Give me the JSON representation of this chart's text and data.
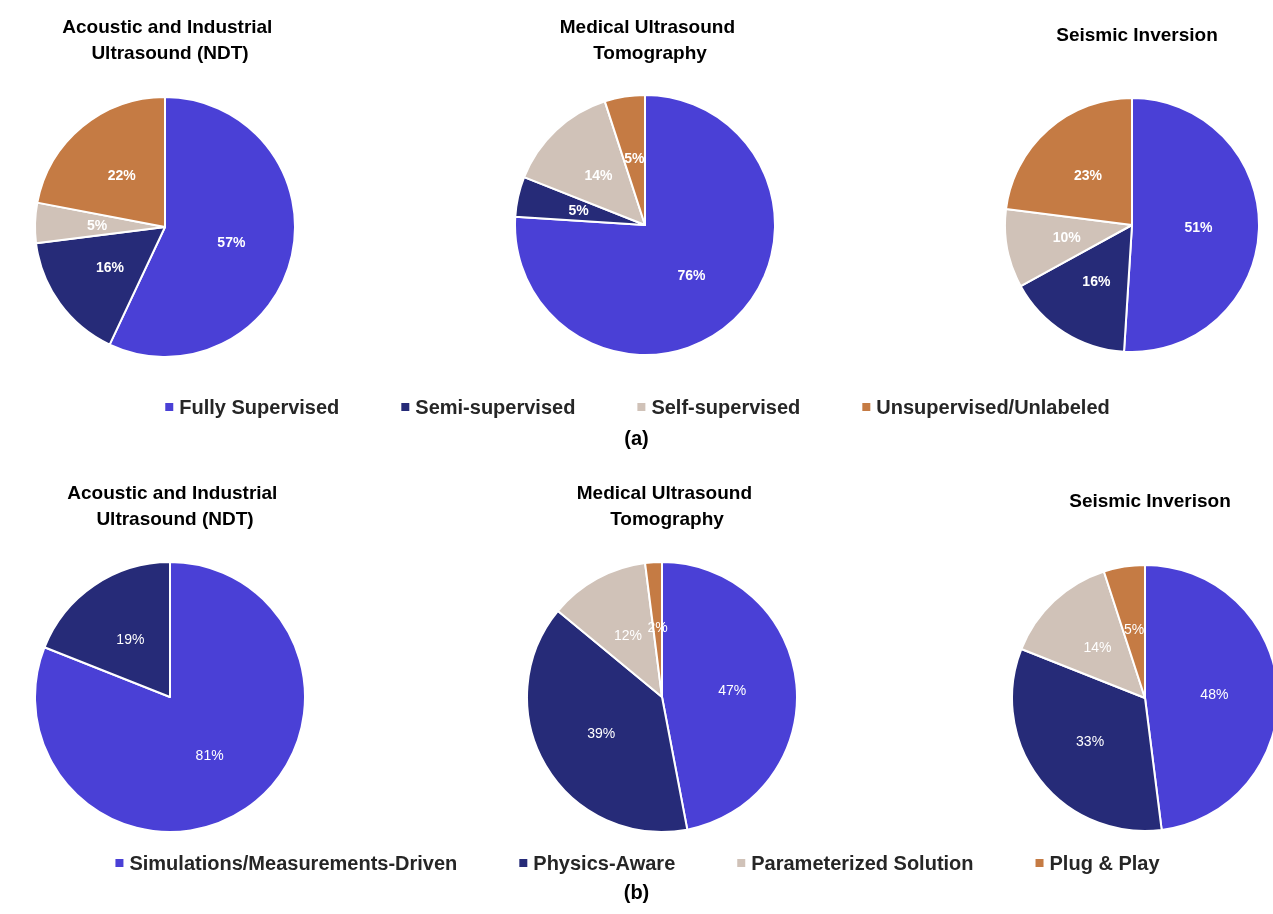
{
  "chart_data": [
    {
      "type": "pie",
      "categories": [
        "Fully Supervised",
        "Semi-supervised",
        "Self-supervised",
        "Unsupervised/Unlabeled"
      ],
      "colors": [
        "#4a40d6",
        "#262b78",
        "#d0c2b8",
        "#c57b44"
      ],
      "legend": "bottom",
      "annotations": [
        "(a)"
      ],
      "series": [
        {
          "name": "Acoustic and Industrial Ultrasound (NDT)",
          "values": [
            57,
            16,
            5,
            22
          ],
          "value_labels": [
            "57%",
            "16%",
            "5%",
            "22%"
          ]
        },
        {
          "name": "Medical Ultrasound Tomography",
          "values": [
            76,
            5,
            14,
            5
          ],
          "value_labels": [
            "76%",
            "5%",
            "14%",
            "5%"
          ]
        },
        {
          "name": "Seismic Inversion",
          "values": [
            51,
            16,
            10,
            23
          ],
          "value_labels": [
            "51%",
            "16%",
            "10%",
            "23%"
          ]
        }
      ]
    },
    {
      "type": "pie",
      "categories": [
        "Simulations/Measurements-Driven",
        "Physics-Aware",
        "Parameterized Solution",
        "Plug & Play"
      ],
      "colors": [
        "#4a40d6",
        "#262b78",
        "#d0c2b8",
        "#c57b44"
      ],
      "legend": "bottom",
      "annotations": [
        "(b)"
      ],
      "series": [
        {
          "name": "Acoustic and Industrial Ultrasound (NDT)",
          "values": [
            81,
            19,
            null,
            null
          ],
          "value_labels": [
            "81%",
            "19%",
            null,
            null
          ]
        },
        {
          "name": "Medical Ultrasound Tomography",
          "values": [
            47,
            39,
            12,
            2
          ],
          "value_labels": [
            "47%",
            "39%",
            "12%",
            "2%"
          ]
        },
        {
          "name": "Seismic Inverison",
          "values": [
            48,
            33,
            14,
            5
          ],
          "value_labels": [
            "48%",
            "33%",
            "14%",
            "5%"
          ]
        }
      ]
    }
  ]
}
